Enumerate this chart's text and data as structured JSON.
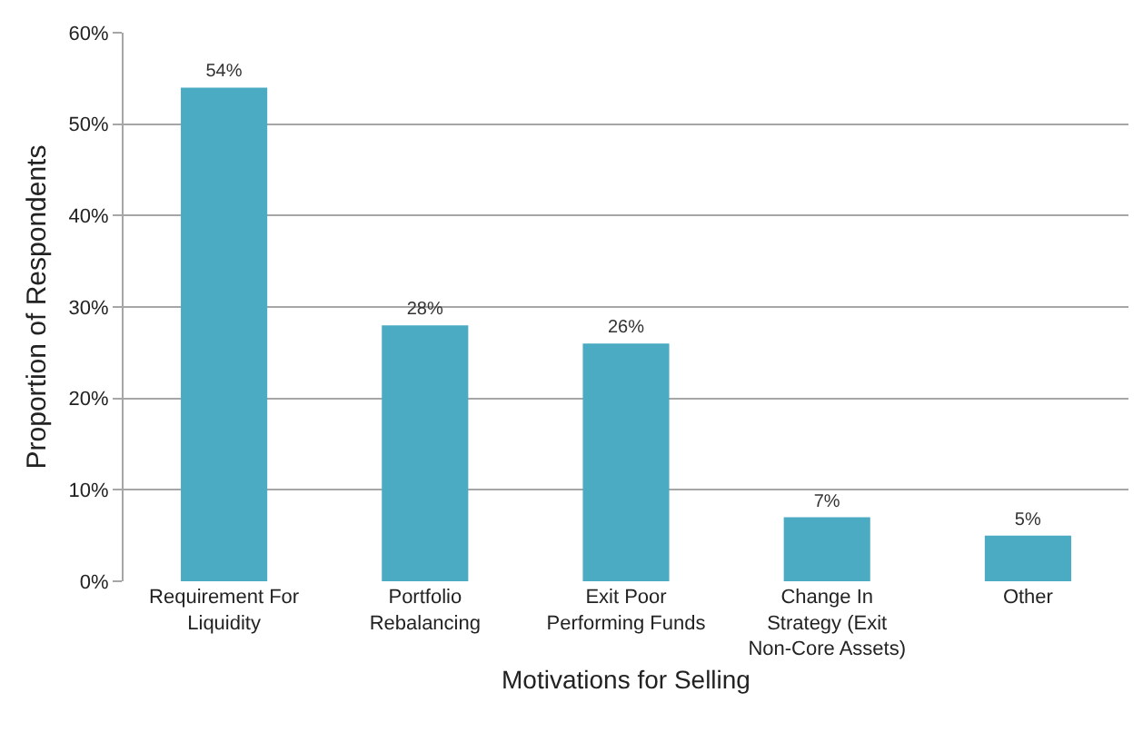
{
  "chart_data": {
    "type": "bar",
    "xlabel": "Motivations for Selling",
    "ylabel": "Proportion of Respondents",
    "categories": [
      "Requirement For\nLiquidity",
      "Portfolio\nRebalancing",
      "Exit Poor\nPerforming Funds",
      "Change In\nStrategy (Exit\nNon-Core Assets)",
      "Other"
    ],
    "values": [
      54,
      28,
      26,
      7,
      5
    ],
    "value_labels": [
      "54%",
      "28%",
      "26%",
      "7%",
      "5%"
    ],
    "color": "#4aabc3",
    "ylim": [
      0,
      60
    ],
    "yticks": [
      {
        "value": 0,
        "label": "0%"
      },
      {
        "value": 10,
        "label": "10%"
      },
      {
        "value": 20,
        "label": "20%"
      },
      {
        "value": 30,
        "label": "30%"
      },
      {
        "value": 40,
        "label": "40%"
      },
      {
        "value": 50,
        "label": "50%"
      },
      {
        "value": 60,
        "label": "60%"
      }
    ],
    "grid": "y"
  }
}
